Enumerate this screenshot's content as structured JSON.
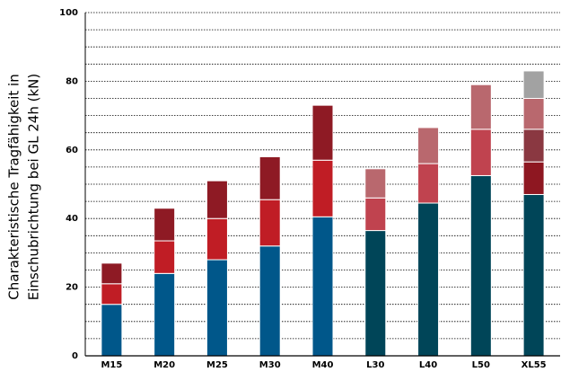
{
  "chart_data": {
    "type": "stacked_bar",
    "ylabel": [
      "Charakteristische Tragfähigkeit in",
      "Einschubrichtung bei GL 24h (kN)"
    ],
    "categories": [
      "M15",
      "M20",
      "M25",
      "M30",
      "M40",
      "L30",
      "L40",
      "L50",
      "XL55"
    ],
    "series": [
      {
        "values": [
          15,
          24,
          28,
          32,
          40.5,
          36.5,
          44.5,
          52.5,
          47
        ],
        "colors": [
          "#00578a",
          "#00578a",
          "#00578a",
          "#00578a",
          "#00578a",
          "#004558",
          "#004558",
          "#004558",
          "#004558"
        ]
      },
      {
        "values": [
          6,
          9.5,
          12,
          13.5,
          16.5,
          9.5,
          11.5,
          13.5,
          9.5
        ],
        "colors": [
          "#c01d25",
          "#c01d25",
          "#c01d25",
          "#c01d25",
          "#c01d25",
          "#c0434f",
          "#c0434f",
          "#c0434f",
          "#8e1721"
        ]
      },
      {
        "values": [
          6,
          9.5,
          11,
          12.5,
          16,
          8.5,
          10.5,
          13,
          9.5
        ],
        "colors": [
          "#8e1a24",
          "#8e1a24",
          "#8e1a24",
          "#8e1a24",
          "#8e1a24",
          "#b9686e",
          "#b9686e",
          "#b9686e",
          "#8a3841"
        ]
      },
      {
        "values": [
          null,
          null,
          null,
          null,
          null,
          null,
          null,
          null,
          9
        ],
        "colors": [
          null,
          null,
          null,
          null,
          null,
          null,
          null,
          null,
          "#b9686e"
        ]
      },
      {
        "values": [
          null,
          null,
          null,
          null,
          null,
          null,
          null,
          null,
          8
        ],
        "colors": [
          null,
          null,
          null,
          null,
          null,
          null,
          null,
          null,
          "#a2a2a2"
        ]
      }
    ],
    "ylim": [
      0,
      100
    ],
    "yticks": [
      0,
      20,
      40,
      60,
      80,
      100
    ],
    "minor_yticks": [
      5,
      10,
      15,
      25,
      30,
      35,
      45,
      50,
      55,
      65,
      70,
      75,
      85,
      90,
      95
    ],
    "grid": true
  }
}
